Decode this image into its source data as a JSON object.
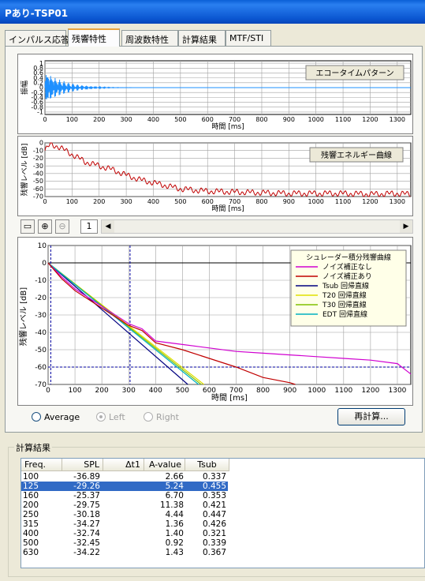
{
  "window": {
    "title": "Pあり-TSP01"
  },
  "tabs": [
    {
      "label": "インパルス応答"
    },
    {
      "label": "残響特性"
    },
    {
      "label": "周波数特性"
    },
    {
      "label": "計算結果"
    },
    {
      "label": "MTF/STI"
    }
  ],
  "echo": {
    "ylabel": "振幅",
    "xlabel": "時間 [ms]",
    "button": "エコータイムパターン",
    "yticks": [
      "1",
      "0.8",
      "0.6",
      "0.4",
      "0.2",
      "0",
      "-0.2",
      "-0.4",
      "-0.6",
      "-0.8",
      "-1"
    ],
    "xticks": [
      "0",
      "100",
      "200",
      "300",
      "400",
      "500",
      "600",
      "700",
      "800",
      "900",
      "1000",
      "1100",
      "1200",
      "1300"
    ],
    "line_color": "#1e90ff"
  },
  "decay": {
    "ylabel": "残響レベル [dB]",
    "xlabel": "時間 [ms]",
    "button": "残響エネルギー曲線",
    "yticks": [
      "0",
      "-10",
      "-20",
      "-30",
      "-40",
      "-50",
      "-60",
      "-70"
    ],
    "xticks": [
      "0",
      "100",
      "200",
      "300",
      "400",
      "500",
      "600",
      "700",
      "800",
      "900",
      "1000",
      "1100",
      "1200",
      "1300"
    ],
    "line_color": "#c00000"
  },
  "toolbar": {
    "page": "1",
    "zoom_in_icon": "zoom-in-icon",
    "zoom_out_icon": "zoom-out-icon"
  },
  "schroeder": {
    "ylabel": "残響レベル [dB]",
    "xlabel": "時間 [ms]",
    "yticks": [
      "10",
      "0",
      "-10",
      "-20",
      "-30",
      "-40",
      "-50",
      "-60",
      "-70"
    ],
    "xticks": [
      "0",
      "100",
      "200",
      "300",
      "400",
      "500",
      "600",
      "700",
      "800",
      "900",
      "1000",
      "1100",
      "1200",
      "1300"
    ],
    "legend_title": "シュレーダー積分残響曲線",
    "legend": [
      {
        "name": "ノイズ補正なし",
        "color": "#d000d0"
      },
      {
        "name": "ノイズ補正あり",
        "color": "#c00000"
      },
      {
        "name": "Tsub 回帰直線",
        "color": "#000080"
      },
      {
        "name": "T20 回帰直線",
        "color": "#e0e000"
      },
      {
        "name": "T30 回帰直線",
        "color": "#80c000"
      },
      {
        "name": "EDT 回帰直線",
        "color": "#00b0c0"
      }
    ]
  },
  "chart_data": [
    {
      "type": "line",
      "title": "エコータイムパターン",
      "xlabel": "時間 [ms]",
      "ylabel": "振幅",
      "xlim": [
        0,
        1350
      ],
      "ylim": [
        -1,
        1
      ],
      "series": [
        {
          "values": "impulse response oscillating ±1 decaying to ~0 by 300 ms"
        }
      ]
    },
    {
      "type": "line",
      "title": "残響エネルギー曲線",
      "xlabel": "時間 [ms]",
      "ylabel": "残響レベル [dB]",
      "xlim": [
        0,
        1350
      ],
      "ylim": [
        -70,
        0
      ],
      "x": [
        0,
        20,
        50,
        100,
        150,
        200,
        250,
        300,
        350,
        400,
        500,
        600,
        700,
        800,
        900,
        1000,
        1100,
        1200,
        1300,
        1350
      ],
      "y": [
        -10,
        -2,
        -5,
        -15,
        -25,
        -30,
        -35,
        -42,
        -48,
        -52,
        -60,
        -63,
        -64,
        -65,
        -66,
        -66,
        -66,
        -67,
        -66,
        -67
      ]
    },
    {
      "type": "line",
      "title": "シュレーダー積分残響曲線",
      "xlabel": "時間 [ms]",
      "ylabel": "残響レベル [dB]",
      "xlim": [
        0,
        1350
      ],
      "ylim": [
        -70,
        10
      ],
      "series": [
        {
          "name": "ノイズ補正なし",
          "x": [
            0,
            50,
            100,
            200,
            300,
            350,
            400,
            500,
            600,
            700,
            800,
            900,
            1000,
            1100,
            1200,
            1300,
            1350
          ],
          "y": [
            0,
            -8,
            -15,
            -25,
            -35,
            -38,
            -45,
            -47,
            -49,
            -51,
            -52,
            -53,
            -54,
            -55,
            -56,
            -58,
            -64
          ]
        },
        {
          "name": "ノイズ補正あり",
          "x": [
            0,
            50,
            100,
            200,
            300,
            350,
            400,
            500,
            600,
            700,
            800,
            900,
            920
          ],
          "y": [
            0,
            -9,
            -16,
            -26,
            -36,
            -39,
            -46,
            -50,
            -55,
            -60,
            -66,
            -69,
            -70
          ]
        },
        {
          "name": "Tsub 回帰直線",
          "x": [
            0,
            520
          ],
          "y": [
            0,
            -70
          ]
        },
        {
          "name": "T20 回帰直線",
          "x": [
            0,
            580
          ],
          "y": [
            0,
            -70
          ]
        },
        {
          "name": "T30 回帰直線",
          "x": [
            0,
            570
          ],
          "y": [
            0,
            -70
          ]
        },
        {
          "name": "EDT 回帰直線",
          "x": [
            0,
            560
          ],
          "y": [
            0,
            -70
          ]
        }
      ]
    }
  ],
  "options": {
    "average": "Average",
    "left": "Left",
    "right": "Right",
    "recalc": "再計算..."
  },
  "results": {
    "group_title": "計算結果",
    "headers": [
      "Freq.",
      "SPL",
      "Δt1",
      "A-value",
      "Tsub"
    ],
    "rows": [
      [
        "100",
        "-36.89",
        "",
        "2.66",
        "0.337"
      ],
      [
        "125",
        "-29.26",
        "",
        "5.24",
        "0.455"
      ],
      [
        "160",
        "-25.37",
        "",
        "6.70",
        "0.353"
      ],
      [
        "200",
        "-29.75",
        "",
        "11.38",
        "0.421"
      ],
      [
        "250",
        "-30.18",
        "",
        "4.44",
        "0.447"
      ],
      [
        "315",
        "-34.27",
        "",
        "1.36",
        "0.426"
      ],
      [
        "400",
        "-32.74",
        "",
        "1.40",
        "0.321"
      ],
      [
        "500",
        "-32.45",
        "",
        "0.92",
        "0.339"
      ],
      [
        "630",
        "-34.22",
        "",
        "1.43",
        "0.367"
      ]
    ],
    "selected": 1
  }
}
